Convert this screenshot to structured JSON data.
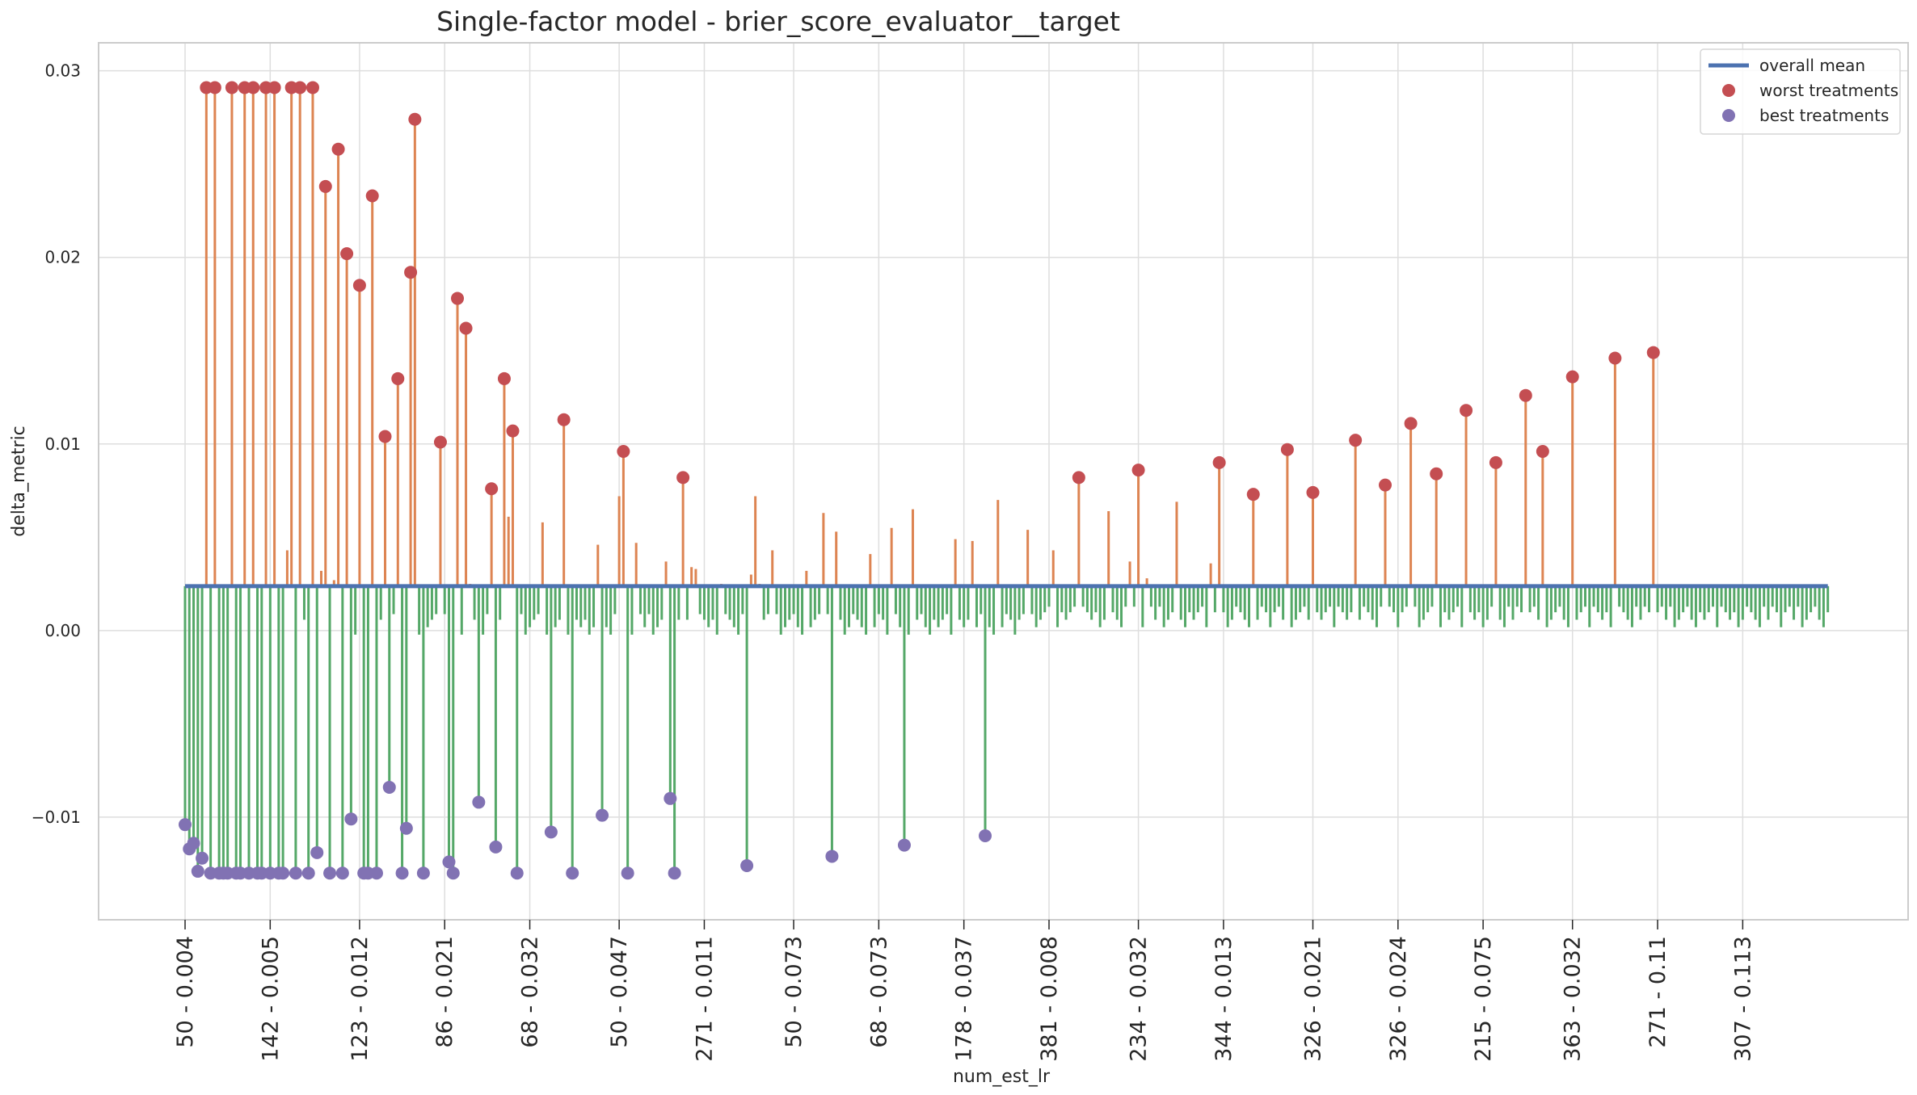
{
  "chart_data": {
    "type": "lollipop",
    "title": "Single-factor model - brier_score_evaluator__target",
    "xlabel": "num_est_lr",
    "ylabel": "delta_metric",
    "ylim": [
      -0.0155,
      0.0315
    ],
    "yticks": [
      {
        "value": 0.03,
        "label": "0.03"
      },
      {
        "value": 0.02,
        "label": "0.02"
      },
      {
        "value": 0.01,
        "label": "0.01"
      },
      {
        "value": 0.0,
        "label": "0.00"
      },
      {
        "value": -0.01,
        "label": "−0.01"
      }
    ],
    "x_count": 387,
    "xticks": [
      {
        "index": 0,
        "label": "50 - 0.004"
      },
      {
        "index": 20,
        "label": "142 - 0.005"
      },
      {
        "index": 41,
        "label": "123 - 0.012"
      },
      {
        "index": 61,
        "label": "86 - 0.021"
      },
      {
        "index": 81,
        "label": "68 - 0.032"
      },
      {
        "index": 102,
        "label": "50 - 0.047"
      },
      {
        "index": 122,
        "label": "271 - 0.011"
      },
      {
        "index": 143,
        "label": "50 - 0.073"
      },
      {
        "index": 163,
        "label": "68 - 0.073"
      },
      {
        "index": 183,
        "label": "178 - 0.037"
      },
      {
        "index": 203,
        "label": "381 - 0.008"
      },
      {
        "index": 224,
        "label": "234 - 0.032"
      },
      {
        "index": 244,
        "label": "344 - 0.013"
      },
      {
        "index": 265,
        "label": "326 - 0.021"
      },
      {
        "index": 285,
        "label": "326 - 0.024"
      },
      {
        "index": 305,
        "label": "215 - 0.075"
      },
      {
        "index": 326,
        "label": "363 - 0.032"
      },
      {
        "index": 346,
        "label": "271 - 0.11"
      },
      {
        "index": 366,
        "label": "307 - 0.113"
      }
    ],
    "overall_mean": 0.00238,
    "worst_treatments": [
      [
        5,
        0.0291
      ],
      [
        7,
        0.0291
      ],
      [
        11,
        0.0291
      ],
      [
        14,
        0.0291
      ],
      [
        16,
        0.0291
      ],
      [
        19,
        0.0291
      ],
      [
        21,
        0.0291
      ],
      [
        25,
        0.0291
      ],
      [
        27,
        0.0291
      ],
      [
        30,
        0.0291
      ],
      [
        33,
        0.0238
      ],
      [
        36,
        0.0258
      ],
      [
        38,
        0.0202
      ],
      [
        41,
        0.0185
      ],
      [
        44,
        0.0233
      ],
      [
        47,
        0.0104
      ],
      [
        50,
        0.0135
      ],
      [
        53,
        0.0192
      ],
      [
        54,
        0.0274
      ],
      [
        60,
        0.0101
      ],
      [
        64,
        0.0178
      ],
      [
        66,
        0.0162
      ],
      [
        72,
        0.0076
      ],
      [
        75,
        0.0135
      ],
      [
        77,
        0.0107
      ],
      [
        89,
        0.0113
      ],
      [
        103,
        0.0096
      ],
      [
        117,
        0.0082
      ],
      [
        210,
        0.0082
      ],
      [
        224,
        0.0086
      ],
      [
        243,
        0.009
      ],
      [
        251,
        0.0073
      ],
      [
        259,
        0.0097
      ],
      [
        265,
        0.0074
      ],
      [
        275,
        0.0102
      ],
      [
        282,
        0.0078
      ],
      [
        288,
        0.0111
      ],
      [
        294,
        0.0084
      ],
      [
        301,
        0.0118
      ],
      [
        308,
        0.009
      ],
      [
        315,
        0.0126
      ],
      [
        319,
        0.0096
      ],
      [
        326,
        0.0136
      ],
      [
        336,
        0.0146
      ],
      [
        345,
        0.0149
      ]
    ],
    "best_treatments": [
      [
        0,
        -0.0104
      ],
      [
        1,
        -0.0117
      ],
      [
        2,
        -0.0114
      ],
      [
        3,
        -0.0129
      ],
      [
        4,
        -0.0122
      ],
      [
        6,
        -0.013
      ],
      [
        8,
        -0.013
      ],
      [
        9,
        -0.013
      ],
      [
        10,
        -0.013
      ],
      [
        12,
        -0.013
      ],
      [
        13,
        -0.013
      ],
      [
        15,
        -0.013
      ],
      [
        17,
        -0.013
      ],
      [
        18,
        -0.013
      ],
      [
        20,
        -0.013
      ],
      [
        22,
        -0.013
      ],
      [
        23,
        -0.013
      ],
      [
        26,
        -0.013
      ],
      [
        29,
        -0.013
      ],
      [
        31,
        -0.0119
      ],
      [
        34,
        -0.013
      ],
      [
        37,
        -0.013
      ],
      [
        39,
        -0.0101
      ],
      [
        42,
        -0.013
      ],
      [
        43,
        -0.013
      ],
      [
        45,
        -0.013
      ],
      [
        48,
        -0.0084
      ],
      [
        51,
        -0.013
      ],
      [
        52,
        -0.0106
      ],
      [
        56,
        -0.013
      ],
      [
        62,
        -0.0124
      ],
      [
        63,
        -0.013
      ],
      [
        69,
        -0.0092
      ],
      [
        73,
        -0.0116
      ],
      [
        78,
        -0.013
      ],
      [
        86,
        -0.0108
      ],
      [
        91,
        -0.013
      ],
      [
        98,
        -0.0099
      ],
      [
        104,
        -0.013
      ],
      [
        114,
        -0.009
      ],
      [
        115,
        -0.013
      ],
      [
        132,
        -0.0126
      ],
      [
        152,
        -0.0121
      ],
      [
        169,
        -0.0115
      ],
      [
        188,
        -0.011
      ]
    ],
    "orange_stems_other": [
      [
        24,
        0.0043
      ],
      [
        32,
        0.0032
      ],
      [
        35,
        0.0027
      ],
      [
        56,
        0.0051
      ],
      [
        67,
        0.0025
      ],
      [
        76,
        0.0061
      ],
      [
        84,
        0.0058
      ],
      [
        91,
        0.0068
      ],
      [
        97,
        0.0046
      ],
      [
        102,
        0.0072
      ],
      [
        106,
        0.0047
      ],
      [
        113,
        0.0037
      ],
      [
        119,
        0.0034
      ],
      [
        120,
        0.0033
      ],
      [
        126,
        0.0025
      ],
      [
        132,
        0.003
      ],
      [
        133,
        0.003
      ],
      [
        135,
        0.0025
      ],
      [
        134,
        0.0072
      ],
      [
        138,
        0.0043
      ],
      [
        146,
        0.0032
      ],
      [
        150,
        0.0063
      ],
      [
        153,
        0.0053
      ],
      [
        161,
        0.0041
      ],
      [
        166,
        0.0055
      ],
      [
        171,
        0.0065
      ],
      [
        181,
        0.0049
      ],
      [
        185,
        0.0048
      ],
      [
        191,
        0.007
      ],
      [
        198,
        0.0054
      ],
      [
        204,
        0.0043
      ],
      [
        217,
        0.0064
      ],
      [
        222,
        0.0037
      ],
      [
        226,
        0.0028
      ],
      [
        233,
        0.0069
      ],
      [
        241,
        0.0036
      ]
    ],
    "legend": [
      "overall mean",
      "worst treatments",
      "best treatments"
    ],
    "legend_position": "top-right",
    "grid": true,
    "colors": {
      "mean": "#4c72b0",
      "worst": "#c44e52",
      "best": "#8172b3",
      "above_stem": "#dd8452",
      "below_stem": "#55a868",
      "grid": "#dedede",
      "frame": "#cccccc"
    }
  }
}
